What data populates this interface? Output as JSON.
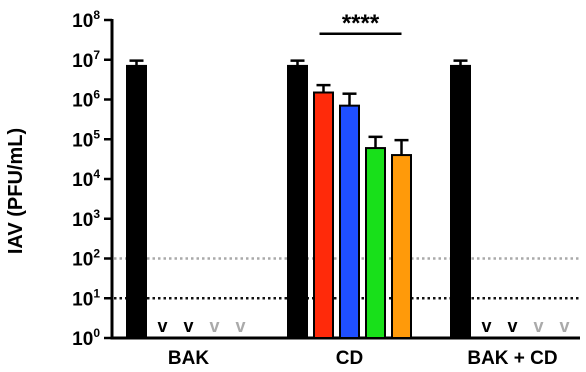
{
  "chart_data": {
    "type": "bar",
    "ylabel": "IAV (PFU/mL)",
    "yscale": "log",
    "ylim": [
      1,
      100000000
    ],
    "y_ticks": [
      {
        "base": "10",
        "exp": "0",
        "value": 1
      },
      {
        "base": "10",
        "exp": "1",
        "value": 10
      },
      {
        "base": "10",
        "exp": "2",
        "value": 100
      },
      {
        "base": "10",
        "exp": "3",
        "value": 1000
      },
      {
        "base": "10",
        "exp": "4",
        "value": 10000
      },
      {
        "base": "10",
        "exp": "5",
        "value": 100000
      },
      {
        "base": "10",
        "exp": "6",
        "value": 1000000
      },
      {
        "base": "10",
        "exp": "7",
        "value": 10000000
      },
      {
        "base": "10",
        "exp": "8",
        "value": 100000000
      }
    ],
    "reference_lines": [
      {
        "value": 100,
        "color": "#aaaaaa"
      },
      {
        "value": 10,
        "color": "#111111"
      }
    ],
    "groups": [
      {
        "label": "BAK",
        "bars": [
          {
            "value": 7000000,
            "err": 9500000,
            "color": "#000000"
          },
          {
            "below_detection": true,
            "mark": "v",
            "color": "#000000"
          },
          {
            "below_detection": true,
            "mark": "v",
            "color": "#000000"
          },
          {
            "below_detection": true,
            "mark": "v",
            "color": "#aaaaaa"
          },
          {
            "below_detection": true,
            "mark": "v",
            "color": "#aaaaaa"
          }
        ]
      },
      {
        "label": "CD",
        "bars": [
          {
            "value": 7000000,
            "err": 9500000,
            "color": "#000000"
          },
          {
            "value": 1500000,
            "err": 2300000,
            "color": "#ff2a0a"
          },
          {
            "value": 700000,
            "err": 1400000,
            "color": "#1f4fff"
          },
          {
            "value": 60000,
            "err": 115000,
            "color": "#18e01a"
          },
          {
            "value": 40000,
            "err": 95000,
            "color": "#ff9a0a"
          }
        ]
      },
      {
        "label": "BAK + CD",
        "bars": [
          {
            "value": 7000000,
            "err": 9500000,
            "color": "#000000"
          },
          {
            "below_detection": true,
            "mark": "v",
            "color": "#000000"
          },
          {
            "below_detection": true,
            "mark": "v",
            "color": "#000000"
          },
          {
            "below_detection": true,
            "mark": "v",
            "color": "#aaaaaa"
          },
          {
            "below_detection": true,
            "mark": "v",
            "color": "#aaaaaa"
          }
        ]
      }
    ],
    "significance": {
      "label": "****",
      "from_group": 1,
      "from_bar": 0,
      "to_group": 1,
      "to_bar": 4,
      "y_value": 45000000
    }
  }
}
